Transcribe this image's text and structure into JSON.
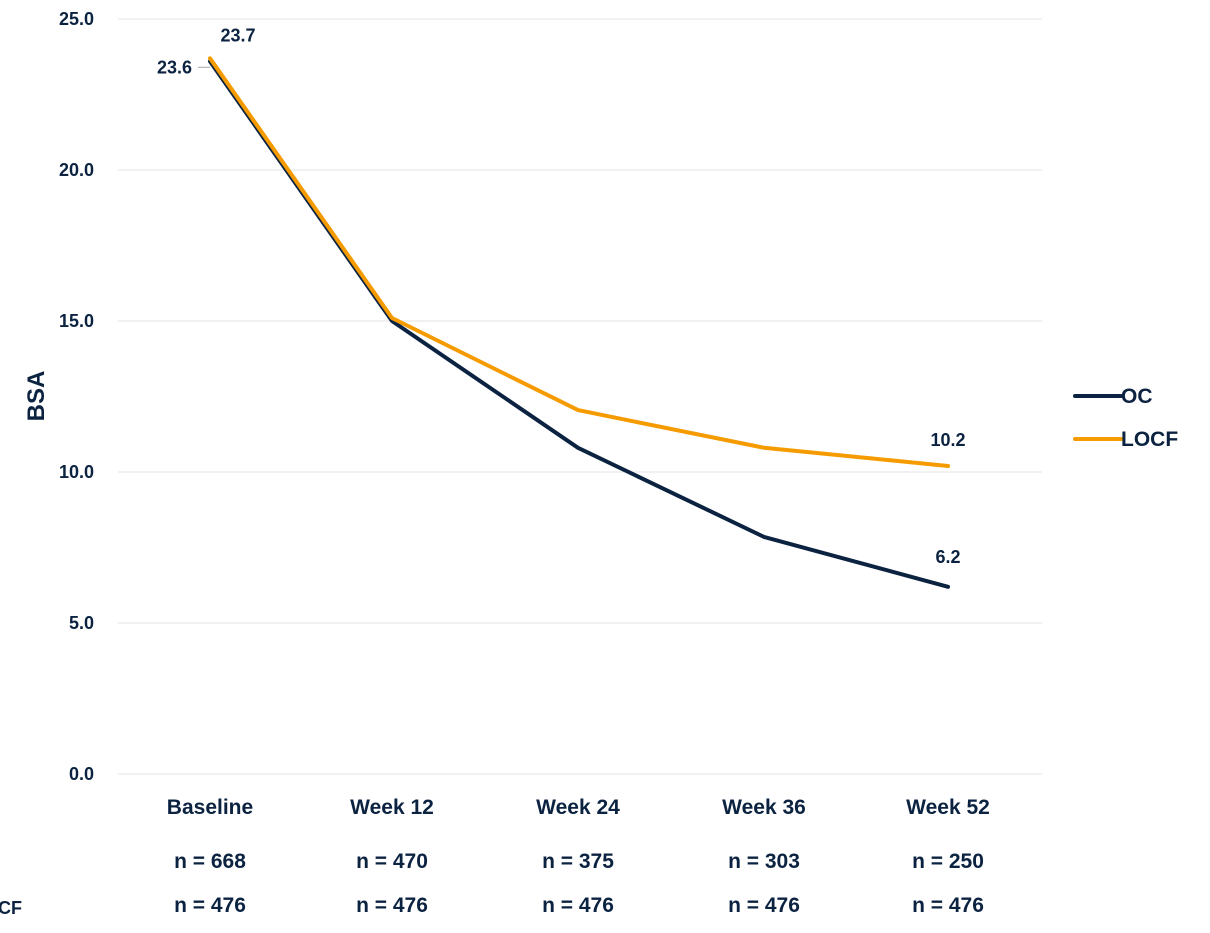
{
  "chart_data": {
    "type": "line",
    "ylabel": "BSA",
    "ylim": [
      0,
      25
    ],
    "yticks": [
      "0.0",
      "5.0",
      "10.0",
      "15.0",
      "20.0",
      "25.0"
    ],
    "grid": true,
    "legend_position": "right",
    "categories": [
      "Baseline",
      "Week 12",
      "Week 24",
      "Week 36",
      "Week 52"
    ],
    "series": [
      {
        "name": "OC",
        "color": "#0b2341",
        "values": [
          23.6,
          15.0,
          10.8,
          7.85,
          6.2
        ],
        "labels": [
          "23.6",
          "",
          "",
          "",
          "6.2"
        ],
        "n": [
          "n = 668",
          "n = 470",
          "n = 375",
          "n = 303",
          "n = 250"
        ]
      },
      {
        "name": "LOCF",
        "color": "#f59b00",
        "values": [
          23.7,
          15.1,
          12.05,
          10.8,
          10.2
        ],
        "labels": [
          "23.7",
          "",
          "",
          "",
          "10.2"
        ],
        "n": [
          "n = 476",
          "n = 476",
          "n = 476",
          "n = 476",
          "n = 476"
        ]
      }
    ],
    "n_row_labels": [
      "",
      "CF"
    ]
  }
}
